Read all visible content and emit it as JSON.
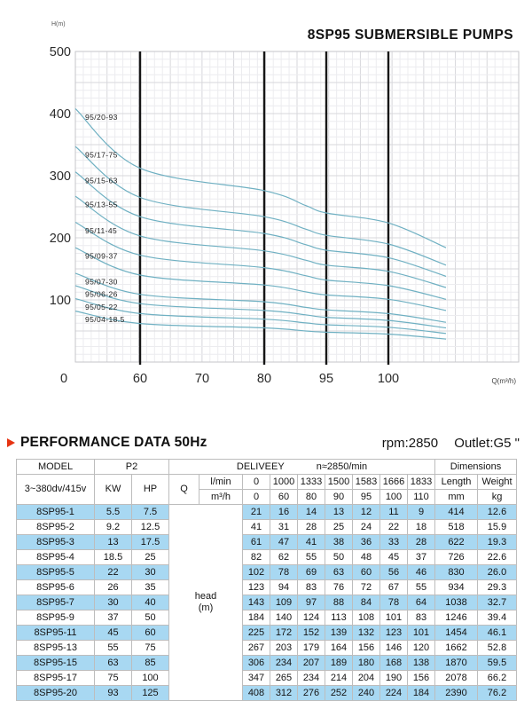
{
  "chart": {
    "title": "8SP95 SUBMERSIBLE PUMPS",
    "y_axis_label": "H(m)",
    "x_axis_label": "Q(m³/h)"
  },
  "chart_data": {
    "type": "line",
    "title": "8SP95 SUBMERSIBLE PUMPS",
    "xlabel": "Q(m³/h)",
    "ylabel": "H(m)",
    "ylim": [
      0,
      500
    ],
    "y_ticks": [
      500,
      400,
      300,
      200,
      100
    ],
    "x_ticks": [
      0,
      60,
      70,
      80,
      95,
      100
    ],
    "marker_lines_at_flow": [
      60,
      80,
      95,
      100
    ],
    "x_flows_m3h": [
      0,
      60,
      80,
      90,
      95,
      100,
      110
    ],
    "grid": true,
    "curve_color": "#6fb0c2",
    "series": [
      {
        "name": "95/20-93",
        "values": [
          408,
          312,
          276,
          252,
          240,
          224,
          184
        ]
      },
      {
        "name": "95/17-75",
        "values": [
          347,
          265,
          234,
          214,
          204,
          190,
          156
        ]
      },
      {
        "name": "95/15-63",
        "values": [
          306,
          234,
          207,
          189,
          180,
          168,
          138
        ]
      },
      {
        "name": "95/13-55",
        "values": [
          267,
          203,
          179,
          164,
          156,
          146,
          120
        ]
      },
      {
        "name": "95/11-45",
        "values": [
          225,
          172,
          152,
          139,
          132,
          123,
          101
        ]
      },
      {
        "name": "95/09-37",
        "values": [
          184,
          140,
          124,
          113,
          108,
          101,
          83
        ]
      },
      {
        "name": "95/07-30",
        "values": [
          143,
          109,
          97,
          88,
          84,
          78,
          64
        ]
      },
      {
        "name": "95/06-26",
        "values": [
          123,
          94,
          83,
          76,
          72,
          67,
          55
        ]
      },
      {
        "name": "95/05-22",
        "values": [
          102,
          78,
          69,
          63,
          60,
          56,
          46
        ]
      },
      {
        "name": "95/04-18.5",
        "values": [
          82,
          62,
          55,
          50,
          48,
          45,
          37
        ]
      }
    ]
  },
  "performance": {
    "section_title": "PERFORMANCE DATA 50Hz",
    "rpm_text": "rpm:2850",
    "outlet_text": "Outlet:G5 \"",
    "table": {
      "headers": {
        "model": "MODEL",
        "p2": "P2",
        "deliveey": "DELIVEEY",
        "n_text": "n≈2850/min",
        "dimensions": "Dimensions",
        "voltage": "3~380dv/415v",
        "kw": "KW",
        "hp": "HP",
        "q": "Q",
        "lmin": "l/min",
        "m3h": "m³/h",
        "length": "Length",
        "weight": "Weight",
        "mm": "mm",
        "kg": "kg",
        "head_label": "head",
        "head_unit": "(m)"
      },
      "flow_lmin": [
        "0",
        "1000",
        "1333",
        "1500",
        "1583",
        "1666",
        "1833"
      ],
      "flow_m3h": [
        "0",
        "60",
        "80",
        "90",
        "95",
        "100",
        "110"
      ],
      "rows": [
        {
          "model": "8SP95-1",
          "kw": "5.5",
          "hp": "7.5",
          "heads": [
            "21",
            "16",
            "14",
            "13",
            "12",
            "11",
            "9"
          ],
          "length": "414",
          "weight": "12.6"
        },
        {
          "model": "8SP95-2",
          "kw": "9.2",
          "hp": "12.5",
          "heads": [
            "41",
            "31",
            "28",
            "25",
            "24",
            "22",
            "18"
          ],
          "length": "518",
          "weight": "15.9"
        },
        {
          "model": "8SP95-3",
          "kw": "13",
          "hp": "17.5",
          "heads": [
            "61",
            "47",
            "41",
            "38",
            "36",
            "33",
            "28"
          ],
          "length": "622",
          "weight": "19.3"
        },
        {
          "model": "8SP95-4",
          "kw": "18.5",
          "hp": "25",
          "heads": [
            "82",
            "62",
            "55",
            "50",
            "48",
            "45",
            "37"
          ],
          "length": "726",
          "weight": "22.6"
        },
        {
          "model": "8SP95-5",
          "kw": "22",
          "hp": "30",
          "heads": [
            "102",
            "78",
            "69",
            "63",
            "60",
            "56",
            "46"
          ],
          "length": "830",
          "weight": "26.0"
        },
        {
          "model": "8SP95-6",
          "kw": "26",
          "hp": "35",
          "heads": [
            "123",
            "94",
            "83",
            "76",
            "72",
            "67",
            "55"
          ],
          "length": "934",
          "weight": "29.3"
        },
        {
          "model": "8SP95-7",
          "kw": "30",
          "hp": "40",
          "heads": [
            "143",
            "109",
            "97",
            "88",
            "84",
            "78",
            "64"
          ],
          "length": "1038",
          "weight": "32.7"
        },
        {
          "model": "8SP95-9",
          "kw": "37",
          "hp": "50",
          "heads": [
            "184",
            "140",
            "124",
            "113",
            "108",
            "101",
            "83"
          ],
          "length": "1246",
          "weight": "39.4"
        },
        {
          "model": "8SP95-11",
          "kw": "45",
          "hp": "60",
          "heads": [
            "225",
            "172",
            "152",
            "139",
            "132",
            "123",
            "101"
          ],
          "length": "1454",
          "weight": "46.1"
        },
        {
          "model": "8SP95-13",
          "kw": "55",
          "hp": "75",
          "heads": [
            "267",
            "203",
            "179",
            "164",
            "156",
            "146",
            "120"
          ],
          "length": "1662",
          "weight": "52.8"
        },
        {
          "model": "8SP95-15",
          "kw": "63",
          "hp": "85",
          "heads": [
            "306",
            "234",
            "207",
            "189",
            "180",
            "168",
            "138"
          ],
          "length": "1870",
          "weight": "59.5"
        },
        {
          "model": "8SP95-17",
          "kw": "75",
          "hp": "100",
          "heads": [
            "347",
            "265",
            "234",
            "214",
            "204",
            "190",
            "156"
          ],
          "length": "2078",
          "weight": "66.2"
        },
        {
          "model": "8SP95-20",
          "kw": "93",
          "hp": "125",
          "heads": [
            "408",
            "312",
            "276",
            "252",
            "240",
            "224",
            "184"
          ],
          "length": "2390",
          "weight": "76.2"
        }
      ]
    }
  },
  "colors": {
    "stripe_blue": "#a8d8f2",
    "accent_red": "#e63312",
    "curve_teal": "#6fb0c2",
    "marker_line": "#161616"
  }
}
